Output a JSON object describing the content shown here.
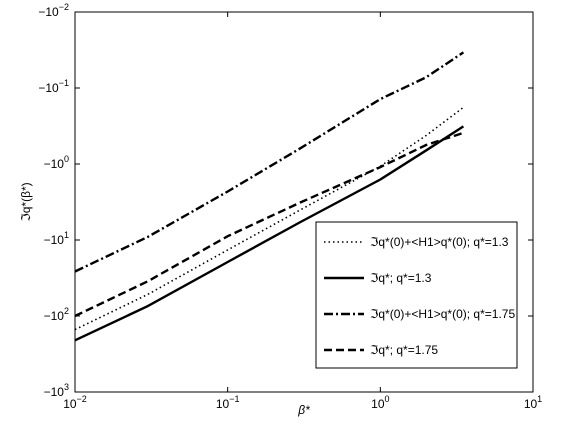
{
  "chart_data": {
    "type": "line",
    "x_label": "β*",
    "y_label": "ℑq*(β*)",
    "x": [
      0.01,
      0.03,
      0.1,
      0.3,
      1,
      2,
      3.5
    ],
    "series": [
      {
        "name": "ℑq*(0)+<H1>q*(0); q*=1.3",
        "color": "#000000",
        "dash": "dotted",
        "values": [
          -151,
          -52,
          -13.5,
          -4,
          -1.07,
          -0.42,
          -0.18
        ]
      },
      {
        "name": "ℑq*; q*=1.3",
        "color": "#000000",
        "dash": "solid",
        "values": [
          -209,
          -74,
          -19.5,
          -5.8,
          -1.6,
          -0.66,
          -0.32
        ]
      },
      {
        "name": "ℑq*(0)+<H1>q*(0); q*=1.75",
        "color": "#000000",
        "dash": "dashdot",
        "values": [
          -26,
          -9.1,
          -2.3,
          -0.62,
          -0.14,
          -0.072,
          -0.034
        ]
      },
      {
        "name": "ℑq*; q*=1.75",
        "color": "#000000",
        "dash": "dashed",
        "values": [
          -100,
          -35,
          -8.9,
          -3.2,
          -1.1,
          -0.56,
          -0.39
        ]
      }
    ],
    "xscale": "log",
    "yscale": "log",
    "xlim": [
      0.01,
      10
    ],
    "xticks": [
      {
        "value": 0.01,
        "label": "10^−2"
      },
      {
        "value": 0.1,
        "label": "10^−1"
      },
      {
        "value": 1,
        "label": "10^0"
      },
      {
        "value": 10,
        "label": "10^1"
      }
    ],
    "ylim": [
      -0.01,
      -1000
    ],
    "yticks": [
      {
        "value": -0.01,
        "label": "−10^−2"
      },
      {
        "value": -0.1,
        "label": "−10^−1"
      },
      {
        "value": -1,
        "label": "−10^0"
      },
      {
        "value": -10,
        "label": "−10^1"
      },
      {
        "value": -100,
        "label": "−10^2"
      },
      {
        "value": -1000,
        "label": "−10^3"
      }
    ],
    "legend": "lower right"
  }
}
